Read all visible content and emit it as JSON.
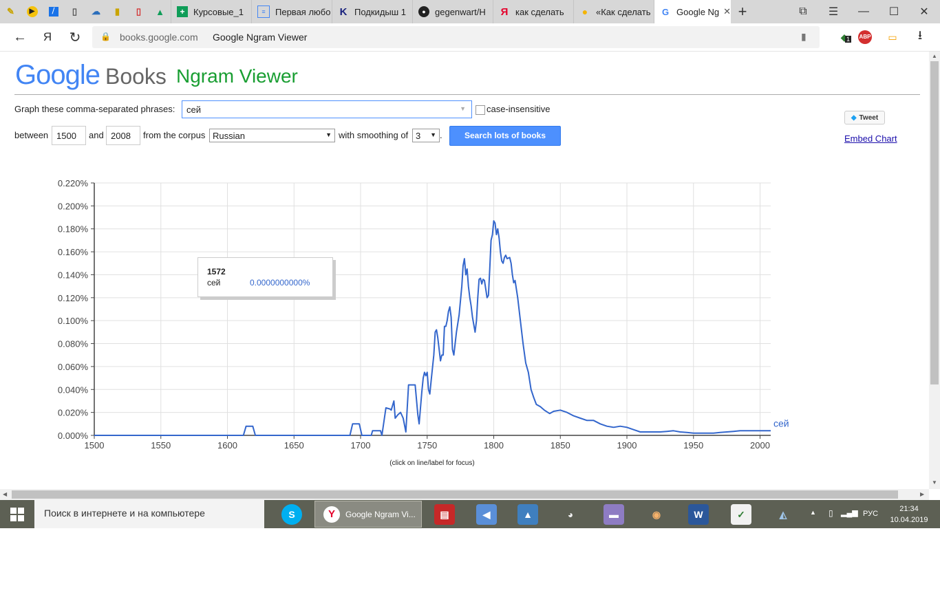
{
  "browser": {
    "tabs": [
      {
        "label": "Курсовые_1",
        "icon": "sheets-icon",
        "color": "#0f9d58"
      },
      {
        "label": "Первая любо",
        "icon": "document-icon",
        "color": "#4285f4"
      },
      {
        "label": "Подкидыш 1",
        "icon": "k-icon",
        "color": "#1a237e"
      },
      {
        "label": "gegenwart/H",
        "icon": "github-icon",
        "color": "#222222"
      },
      {
        "label": "как сделать",
        "icon": "yandex-icon",
        "color": "#e4002b"
      },
      {
        "label": "«Как сделать",
        "icon": "bulb-icon",
        "color": "#f4b400"
      },
      {
        "label": "Google Ng",
        "icon": "google-icon",
        "color": "#4285f4"
      }
    ],
    "domain": "books.google.com",
    "page_title": "Google Ngram Viewer",
    "adblock_label": "ABP",
    "ext_badge": "1"
  },
  "header": {
    "logo_google": "Google",
    "logo_books": "Books",
    "title": "Ngram Viewer"
  },
  "form": {
    "phrases_label": "Graph these comma-separated phrases:",
    "phrases_value": "сей",
    "case_label": "case-insensitive",
    "between_label": "between",
    "year_start": "1500",
    "and_label": "and",
    "year_end": "2008",
    "corpus_label": "from the corpus",
    "corpus_value": "Russian",
    "smoothing_label": "with smoothing of",
    "smoothing_value": "3",
    "period": ".",
    "search_button": "Search lots of books"
  },
  "side": {
    "tweet_label": "Tweet",
    "embed_label": "Embed Chart"
  },
  "tooltip": {
    "year": "1572",
    "phrase": "сей",
    "value": "0.0000000000%"
  },
  "chart_caption": "(click on line/label for focus)",
  "chart_data": {
    "type": "line",
    "title": "",
    "xlabel": "",
    "ylabel": "",
    "xlim": [
      1500,
      2008
    ],
    "ylim": [
      0,
      0.22
    ],
    "x_ticks": [
      "1500",
      "1550",
      "1600",
      "1650",
      "1700",
      "1750",
      "1800",
      "1850",
      "1900",
      "1950",
      "2000"
    ],
    "y_ticks": [
      "0.000%",
      "0.020%",
      "0.040%",
      "0.060%",
      "0.080%",
      "0.100%",
      "0.120%",
      "0.140%",
      "0.160%",
      "0.180%",
      "0.200%",
      "0.220%"
    ],
    "series": [
      {
        "name": "сей",
        "color": "#3366cc",
        "points": [
          [
            1500,
            0
          ],
          [
            1612,
            0
          ],
          [
            1614,
            0.008
          ],
          [
            1619,
            0.008
          ],
          [
            1621,
            0
          ],
          [
            1692,
            0
          ],
          [
            1694,
            0.01
          ],
          [
            1699,
            0.01
          ],
          [
            1701,
            0
          ],
          [
            1708,
            0
          ],
          [
            1709,
            0.004
          ],
          [
            1715,
            0.004
          ],
          [
            1716,
            0
          ],
          [
            1719,
            0.024
          ],
          [
            1722,
            0.023
          ],
          [
            1723,
            0.022
          ],
          [
            1725,
            0.03
          ],
          [
            1726,
            0.015
          ],
          [
            1728,
            0.018
          ],
          [
            1730,
            0.02
          ],
          [
            1732,
            0.015
          ],
          [
            1734,
            0.003
          ],
          [
            1736,
            0.044
          ],
          [
            1741,
            0.044
          ],
          [
            1743,
            0.018
          ],
          [
            1744,
            0.01
          ],
          [
            1746,
            0.038
          ],
          [
            1747,
            0.05
          ],
          [
            1748,
            0.055
          ],
          [
            1749,
            0.052
          ],
          [
            1750,
            0.055
          ],
          [
            1751,
            0.04
          ],
          [
            1752,
            0.036
          ],
          [
            1753,
            0.048
          ],
          [
            1755,
            0.07
          ],
          [
            1756,
            0.09
          ],
          [
            1757,
            0.092
          ],
          [
            1758,
            0.085
          ],
          [
            1760,
            0.065
          ],
          [
            1761,
            0.07
          ],
          [
            1762,
            0.07
          ],
          [
            1763,
            0.095
          ],
          [
            1764,
            0.095
          ],
          [
            1765,
            0.1
          ],
          [
            1766,
            0.108
          ],
          [
            1767,
            0.112
          ],
          [
            1768,
            0.103
          ],
          [
            1769,
            0.075
          ],
          [
            1770,
            0.07
          ],
          [
            1772,
            0.09
          ],
          [
            1774,
            0.105
          ],
          [
            1776,
            0.13
          ],
          [
            1777,
            0.148
          ],
          [
            1778,
            0.154
          ],
          [
            1779,
            0.14
          ],
          [
            1780,
            0.145
          ],
          [
            1781,
            0.13
          ],
          [
            1782,
            0.12
          ],
          [
            1783,
            0.113
          ],
          [
            1784,
            0.103
          ],
          [
            1786,
            0.09
          ],
          [
            1787,
            0.1
          ],
          [
            1788,
            0.12
          ],
          [
            1789,
            0.136
          ],
          [
            1790,
            0.137
          ],
          [
            1791,
            0.132
          ],
          [
            1792,
            0.136
          ],
          [
            1793,
            0.135
          ],
          [
            1795,
            0.12
          ],
          [
            1796,
            0.122
          ],
          [
            1797,
            0.145
          ],
          [
            1798,
            0.17
          ],
          [
            1799,
            0.175
          ],
          [
            1800,
            0.187
          ],
          [
            1801,
            0.185
          ],
          [
            1802,
            0.175
          ],
          [
            1803,
            0.18
          ],
          [
            1804,
            0.172
          ],
          [
            1805,
            0.16
          ],
          [
            1806,
            0.152
          ],
          [
            1807,
            0.15
          ],
          [
            1808,
            0.155
          ],
          [
            1809,
            0.157
          ],
          [
            1810,
            0.154
          ],
          [
            1812,
            0.155
          ],
          [
            1813,
            0.15
          ],
          [
            1814,
            0.14
          ],
          [
            1815,
            0.133
          ],
          [
            1816,
            0.135
          ],
          [
            1818,
            0.12
          ],
          [
            1820,
            0.1
          ],
          [
            1822,
            0.08
          ],
          [
            1824,
            0.063
          ],
          [
            1826,
            0.055
          ],
          [
            1828,
            0.04
          ],
          [
            1830,
            0.033
          ],
          [
            1832,
            0.027
          ],
          [
            1835,
            0.025
          ],
          [
            1838,
            0.022
          ],
          [
            1842,
            0.019
          ],
          [
            1845,
            0.021
          ],
          [
            1850,
            0.022
          ],
          [
            1855,
            0.02
          ],
          [
            1860,
            0.017
          ],
          [
            1865,
            0.015
          ],
          [
            1870,
            0.013
          ],
          [
            1875,
            0.013
          ],
          [
            1880,
            0.01
          ],
          [
            1885,
            0.008
          ],
          [
            1890,
            0.007
          ],
          [
            1895,
            0.008
          ],
          [
            1900,
            0.007
          ],
          [
            1905,
            0.005
          ],
          [
            1910,
            0.003
          ],
          [
            1915,
            0.003
          ],
          [
            1920,
            0.003
          ],
          [
            1925,
            0.003
          ],
          [
            1930,
            0.0035
          ],
          [
            1935,
            0.004
          ],
          [
            1940,
            0.003
          ],
          [
            1945,
            0.0025
          ],
          [
            1950,
            0.002
          ],
          [
            1955,
            0.002
          ],
          [
            1960,
            0.002
          ],
          [
            1965,
            0.002
          ],
          [
            1970,
            0.0025
          ],
          [
            1975,
            0.003
          ],
          [
            1980,
            0.0035
          ],
          [
            1985,
            0.004
          ],
          [
            1990,
            0.004
          ],
          [
            1995,
            0.004
          ],
          [
            2000,
            0.004
          ],
          [
            2005,
            0.004
          ],
          [
            2008,
            0.004
          ]
        ]
      }
    ]
  },
  "taskbar": {
    "search_placeholder": "Поиск в интернете и на компьютере",
    "active_app": "Google Ngram Vi...",
    "lang": "РУС",
    "time": "21:34",
    "date": "10.04.2019"
  }
}
